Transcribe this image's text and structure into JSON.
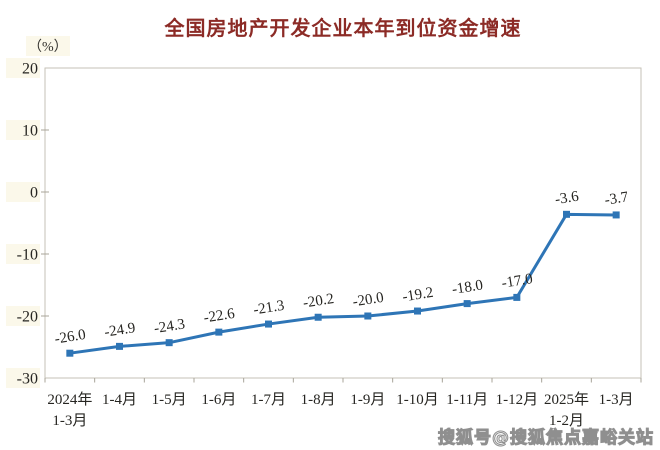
{
  "page": {
    "background": "#ffffff",
    "watermark": "搜狐号@搜狐焦点嘉峪关站"
  },
  "chart_data": {
    "type": "line",
    "title": "全国房地产开发企业本年到位资金增速",
    "unit_label": "（%）",
    "categories": [
      "2024年\n1-3月",
      "1-4月",
      "1-5月",
      "1-6月",
      "1-7月",
      "1-8月",
      "1-9月",
      "1-10月",
      "1-11月",
      "1-12月",
      "2025年\n1-2月",
      "1-3月"
    ],
    "series": [
      {
        "name": "本年到位资金增速",
        "values": [
          -26.0,
          -24.9,
          -24.3,
          -22.6,
          -21.3,
          -20.2,
          -20.0,
          -19.2,
          -18.0,
          -17.0,
          -3.6,
          -3.7
        ],
        "point_labels": [
          "-26.0",
          "-24.9",
          "-24.3",
          "-22.6",
          "-21.3",
          "-20.2",
          "-20.0",
          "-19.2",
          "-18.0",
          "-17.0",
          "-3.6",
          "-3.7"
        ]
      }
    ],
    "xlabel": "",
    "ylabel": "（%）",
    "ylim": [
      -30,
      20
    ],
    "y_ticks": [
      20,
      10,
      0,
      -10,
      -20,
      -30
    ],
    "grid": false,
    "legend": "none",
    "marker": "square",
    "colors": {
      "line": "#2e75b6",
      "marker": "#2e75b6",
      "title": "#8c2b26",
      "axis_border": "#c6c2b7",
      "tick": "#a8a49a",
      "text": "#262521",
      "tick_label_bg": "#fbf8ea"
    }
  }
}
